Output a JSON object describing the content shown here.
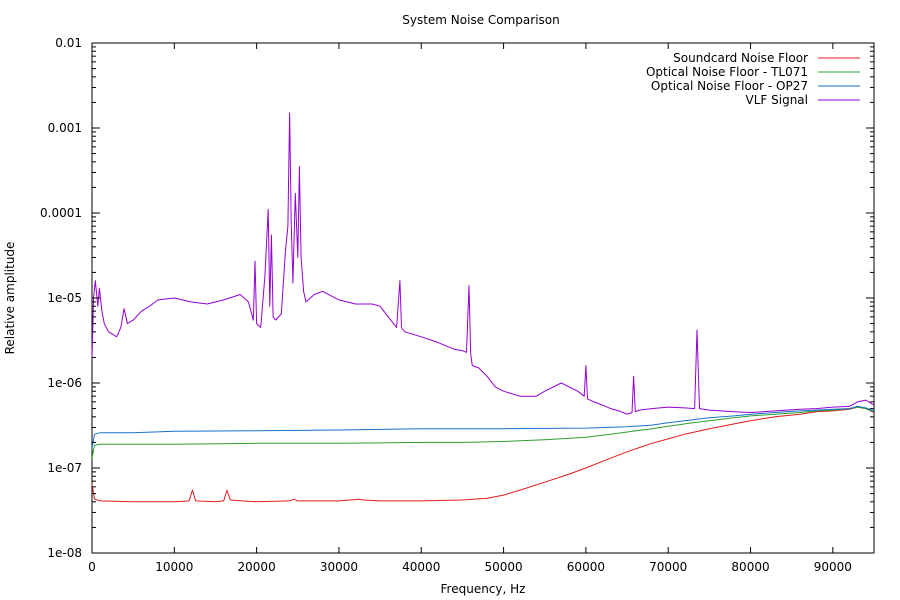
{
  "chart_data": {
    "type": "line",
    "title": "System Noise Comparison",
    "xlabel": "Frequency, Hz",
    "ylabel": "Relative amplitude",
    "xlim": [
      0,
      95000
    ],
    "ylim": [
      1e-08,
      0.01
    ],
    "yscale": "log",
    "grid": false,
    "legend_position": "top-right",
    "x_ticks": [
      0,
      10000,
      20000,
      30000,
      40000,
      50000,
      60000,
      70000,
      80000,
      90000
    ],
    "x_tick_labels": [
      "0",
      "10000",
      "20000",
      "30000",
      "40000",
      "50000",
      "60000",
      "70000",
      "80000",
      "90000"
    ],
    "y_ticks": [
      1e-08,
      1e-07,
      1e-06,
      1e-05,
      0.0001,
      0.001,
      0.01
    ],
    "y_tick_labels": [
      "1e-08",
      "1e-07",
      "1e-06",
      "1e-05",
      "0.0001",
      "0.001",
      "0.01"
    ],
    "series": [
      {
        "name": "Soundcard Noise Floor",
        "color": "#e41a1c",
        "x": [
          0,
          300,
          1000,
          5000,
          10000,
          11800,
          12200,
          12600,
          15000,
          16000,
          16400,
          16800,
          20000,
          24000,
          24500,
          25000,
          30000,
          32500,
          33000,
          35000,
          40000,
          45000,
          48000,
          50000,
          52000,
          55000,
          58000,
          60000,
          62000,
          65000,
          68000,
          70000,
          72000,
          75000,
          78000,
          80000,
          83000,
          86000,
          88000,
          90000,
          92000,
          93000,
          94000,
          95000
        ],
        "y": [
          6.5e-08,
          4.3e-08,
          4.1e-08,
          4e-08,
          4e-08,
          4.1e-08,
          5.5e-08,
          4.1e-08,
          4e-08,
          4.1e-08,
          5.5e-08,
          4.2e-08,
          4e-08,
          4.1e-08,
          4.3e-08,
          4.1e-08,
          4.1e-08,
          4.3e-08,
          4.2e-08,
          4.1e-08,
          4.1e-08,
          4.2e-08,
          4.4e-08,
          4.8e-08,
          5.5e-08,
          6.8e-08,
          8.5e-08,
          1e-07,
          1.2e-07,
          1.55e-07,
          1.95e-07,
          2.2e-07,
          2.5e-07,
          2.9e-07,
          3.3e-07,
          3.6e-07,
          4e-07,
          4.3e-07,
          4.6e-07,
          4.7e-07,
          4.9e-07,
          5.2e-07,
          5e-07,
          4.5e-07
        ]
      },
      {
        "name": "Optical Noise Floor - TL071",
        "color": "#2ca02c",
        "x": [
          0,
          300,
          1000,
          5000,
          10000,
          20000,
          30000,
          40000,
          45000,
          50000,
          55000,
          60000,
          63000,
          65000,
          68000,
          70000,
          73000,
          75000,
          78000,
          80000,
          83000,
          86000,
          88000,
          90000,
          92000,
          93000,
          94000,
          95000
        ],
        "y": [
          1.3e-07,
          1.85e-07,
          1.9e-07,
          1.9e-07,
          1.9e-07,
          1.95e-07,
          1.95e-07,
          2e-07,
          2e-07,
          2.05e-07,
          2.15e-07,
          2.3e-07,
          2.5e-07,
          2.65e-07,
          2.9e-07,
          3.1e-07,
          3.4e-07,
          3.6e-07,
          3.9e-07,
          4.1e-07,
          4.3e-07,
          4.5e-07,
          4.7e-07,
          4.8e-07,
          5e-07,
          5.2e-07,
          5e-07,
          4.6e-07
        ]
      },
      {
        "name": "Optical Noise Floor - OP27",
        "color": "#1a73c9",
        "x": [
          0,
          300,
          1000,
          5000,
          10000,
          20000,
          30000,
          40000,
          50000,
          60000,
          65000,
          68000,
          70000,
          73000,
          75000,
          78000,
          80000,
          83000,
          86000,
          88000,
          90000,
          92000,
          93000,
          94000,
          95000
        ],
        "y": [
          1.7e-07,
          2.5e-07,
          2.6e-07,
          2.6e-07,
          2.7e-07,
          2.75e-07,
          2.8e-07,
          2.9e-07,
          2.9e-07,
          2.95e-07,
          3.05e-07,
          3.2e-07,
          3.4e-07,
          3.7e-07,
          3.9e-07,
          4.1e-07,
          4.3e-07,
          4.5e-07,
          4.7e-07,
          4.8e-07,
          4.9e-07,
          5e-07,
          5.3e-07,
          5.1e-07,
          4.7e-07
        ]
      },
      {
        "name": "VLF Signal",
        "color": "#9400d3",
        "x": [
          0,
          200,
          400,
          700,
          900,
          1200,
          1500,
          2000,
          3000,
          3500,
          3900,
          4300,
          5000,
          6000,
          7000,
          8000,
          10000,
          12000,
          14000,
          16000,
          18000,
          19000,
          19600,
          19800,
          20000,
          20500,
          21000,
          21400,
          21600,
          21800,
          22000,
          22300,
          23000,
          23500,
          23800,
          24000,
          24200,
          24400,
          24700,
          25000,
          25200,
          25400,
          25700,
          26000,
          27000,
          28000,
          30000,
          32000,
          34000,
          35000,
          36000,
          37000,
          37400,
          37600,
          37800,
          38000,
          40000,
          42000,
          44000,
          45000,
          45500,
          45800,
          46000,
          46200,
          47000,
          48000,
          49000,
          50000,
          52000,
          54000,
          55000,
          57000,
          59000,
          59800,
          60000,
          60200,
          61000,
          62000,
          63000,
          64000,
          65000,
          65600,
          65800,
          66000,
          66500,
          68000,
          70000,
          72000,
          73200,
          73500,
          73800,
          75000,
          78000,
          80000,
          83000,
          86000,
          88000,
          90000,
          92000,
          93000,
          94000,
          95000
        ],
        "y": [
          2e-06,
          1e-05,
          1.6e-05,
          8e-06,
          1.3e-05,
          7e-06,
          5e-06,
          4e-06,
          3.5e-06,
          4.5e-06,
          7.5e-06,
          5e-06,
          5.5e-06,
          7e-06,
          8e-06,
          9.5e-06,
          1e-05,
          9e-06,
          8.5e-06,
          9.5e-06,
          1.1e-05,
          9e-06,
          5.5e-06,
          2.7e-05,
          5e-06,
          4.5e-06,
          1.8e-05,
          0.00011,
          8e-06,
          5.5e-05,
          6e-06,
          5.5e-06,
          6.5e-06,
          3.5e-05,
          7e-05,
          0.0015,
          8e-05,
          1.5e-05,
          0.00017,
          3e-05,
          0.00035,
          3e-05,
          1.2e-05,
          9e-06,
          1.1e-05,
          1.2e-05,
          9.5e-06,
          8.5e-06,
          8.5e-06,
          8e-06,
          6e-06,
          4.5e-06,
          1.6e-05,
          4.5e-06,
          4.2e-06,
          4e-06,
          3.5e-06,
          3e-06,
          2.5e-06,
          2.4e-06,
          2.3e-06,
          1.4e-05,
          2.2e-06,
          1.6e-06,
          1.5e-06,
          1.2e-06,
          9e-07,
          8e-07,
          7e-07,
          7e-07,
          8e-07,
          1e-06,
          8e-07,
          7e-07,
          1.6e-06,
          6.5e-07,
          6e-07,
          5.5e-07,
          5e-07,
          4.7e-07,
          4.3e-07,
          4.5e-07,
          1.2e-06,
          4.6e-07,
          4.8e-07,
          5e-07,
          5.2e-07,
          5.1e-07,
          5e-07,
          4.2e-06,
          5e-07,
          4.8e-07,
          4.6e-07,
          4.5e-07,
          4.7e-07,
          4.9e-07,
          5e-07,
          5.2e-07,
          5.3e-07,
          6e-07,
          6.3e-07,
          5.5e-07
        ]
      }
    ]
  }
}
